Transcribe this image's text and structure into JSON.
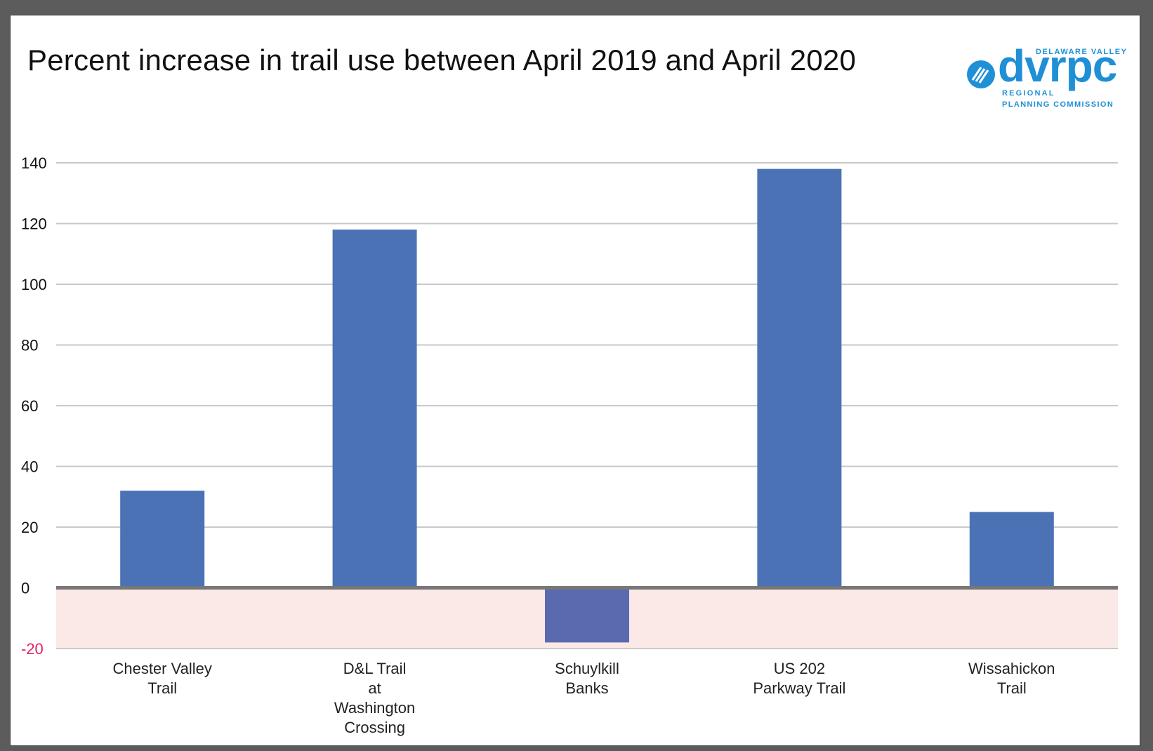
{
  "chart_data": {
    "type": "bar",
    "title": "Percent increase in trail use between April 2019 and April 2020",
    "categories": [
      [
        "Chester Valley",
        "Trail"
      ],
      [
        "D&L Trail",
        "at",
        "Washington",
        "Crossing"
      ],
      [
        "Schuylkill",
        "Banks"
      ],
      [
        "US 202",
        "Parkway Trail"
      ],
      [
        "Wissahickon",
        "Trail"
      ]
    ],
    "values": [
      32,
      118,
      -18,
      138,
      25
    ],
    "ylim": [
      -20,
      140
    ],
    "yticks": [
      140,
      120,
      100,
      80,
      60,
      40,
      20,
      0,
      -20
    ],
    "grid": true,
    "legend": "none",
    "colors": {
      "bar": "#4a72b5",
      "bar_negative": "#5a6aae",
      "negative_zone": "#fbe9e7",
      "negative_tick": "#e0245e",
      "gridline": "#c9c9c9",
      "zero_line": "#777777"
    }
  },
  "logo": {
    "name": "dvrpc",
    "line1": "DELAWARE VALLEY",
    "line2": "REGIONAL",
    "line3": "PLANNING COMMISSION",
    "color": "#1f8fd6"
  }
}
